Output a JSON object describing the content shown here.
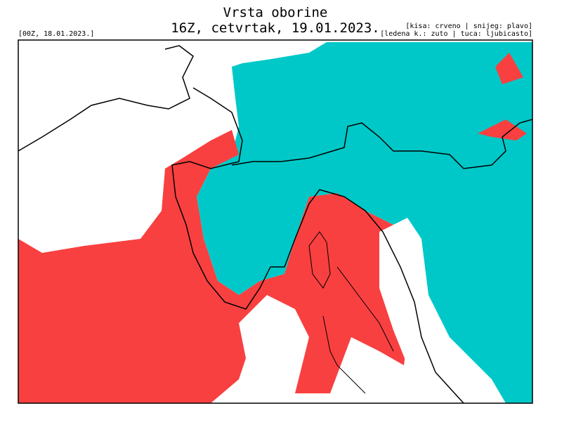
{
  "header": {
    "title": "Vrsta oborine",
    "subtitle": "16Z, cetvrtak, 19.01.2023.",
    "run": "[00Z, 18.01.2023.]",
    "legend": [
      "[kisa: crveno | snijeg: plavo]",
      "[ledena k.: zuto | tuca: ljubicasto]"
    ]
  }
}
